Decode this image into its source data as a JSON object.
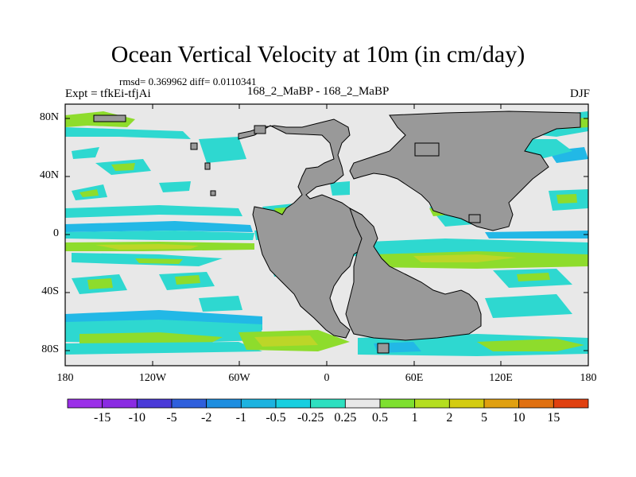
{
  "title": "Ocean Vertical Velocity at 10m (in cm/day)",
  "stats": "rmsd= 0.369962 diff= 0.0110341",
  "experiment": "Expt = tfkEi-tfjAi",
  "center_label": "168_2_MaBP - 168_2_MaBP",
  "season": "DJF",
  "lat_ticks": [
    "80N",
    "40N",
    "0",
    "40S",
    "80S"
  ],
  "lon_ticks": [
    "180",
    "120W",
    "60W",
    "0",
    "60E",
    "120E",
    "180"
  ],
  "colorbar": {
    "labels": [
      "-15",
      "-10",
      "-5",
      "-2",
      "-1",
      "-0.5",
      "-0.25",
      "0.25",
      "0.5",
      "1",
      "2",
      "5",
      "10",
      "15"
    ],
    "colors": [
      "#8a2be2",
      "#4a3ad8",
      "#2f5fdc",
      "#1e8ee0",
      "#1cb3e0",
      "#18cfe0",
      "#2ee0c0",
      "#e8e8e8",
      "#7ee030",
      "#b4de20",
      "#d4cc10",
      "#e0a010",
      "#e07010",
      "#e04010"
    ]
  },
  "colors": {
    "land": "#999999",
    "neutral": "#e8e8e8",
    "cyan": "#2ed8d0",
    "lightblue": "#22b8e6",
    "green": "#8edc2c",
    "olive": "#bcd628"
  }
}
